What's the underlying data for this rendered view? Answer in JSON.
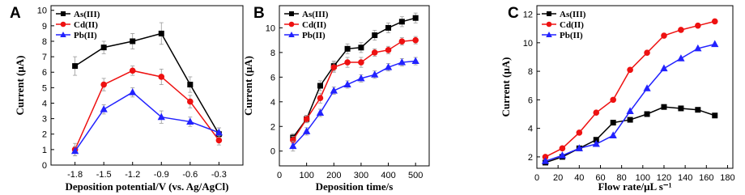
{
  "chart_data": [
    {
      "type": "line",
      "panel_label": "A",
      "x_label": "Deposition potential/V (vs. Ag/AgCl)",
      "y_label": "Current (μA)",
      "x": [
        -1.8,
        -1.5,
        -1.2,
        -0.9,
        -0.6,
        -0.3
      ],
      "xlim": [
        -2.05,
        -0.05
      ],
      "xticks": [
        -1.8,
        -1.5,
        -1.2,
        -0.9,
        -0.6,
        -0.3
      ],
      "ylim": [
        0,
        10.3
      ],
      "yticks": [
        0,
        1,
        2,
        3,
        4,
        5,
        6,
        7,
        8,
        9,
        10
      ],
      "legend": "upper left",
      "series": [
        {
          "name": "As(III)",
          "color": "#000000",
          "marker": "square",
          "values": [
            6.4,
            7.6,
            8.0,
            8.5,
            5.2,
            2.0
          ],
          "errors": [
            0.6,
            0.4,
            0.5,
            0.7,
            0.5,
            0.4
          ]
        },
        {
          "name": "Cd(II)",
          "color": "#ee1111",
          "marker": "circle",
          "values": [
            1.0,
            5.2,
            6.1,
            5.7,
            4.1,
            1.6
          ],
          "errors": [
            0.4,
            0.4,
            0.3,
            0.5,
            0.4,
            0.3
          ]
        },
        {
          "name": "Pb(II)",
          "color": "#2222ff",
          "marker": "triangle",
          "values": [
            0.9,
            3.6,
            4.7,
            3.1,
            2.8,
            2.1
          ],
          "errors": [
            0.3,
            0.3,
            0.3,
            0.4,
            0.3,
            0.3
          ]
        }
      ]
    },
    {
      "type": "line",
      "panel_label": "B",
      "x_label": "Deposition time/s",
      "y_label": "Current (μA)",
      "x": [
        50,
        100,
        150,
        200,
        250,
        300,
        350,
        400,
        450,
        500
      ],
      "xlim": [
        0,
        550
      ],
      "xticks": [
        0,
        100,
        200,
        300,
        400,
        500
      ],
      "ylim": [
        -1.2,
        11.8
      ],
      "yticks": [
        0,
        2,
        4,
        6,
        8,
        10
      ],
      "legend": "upper left",
      "series": [
        {
          "name": "As(III)",
          "color": "#000000",
          "marker": "square",
          "values": [
            1.1,
            2.6,
            5.3,
            6.9,
            8.3,
            8.4,
            9.4,
            10.0,
            10.5,
            10.8
          ],
          "errors": [
            0.3,
            0.3,
            0.4,
            0.4,
            0.4,
            0.4,
            0.4,
            0.4,
            0.4,
            0.4
          ]
        },
        {
          "name": "Cd(II)",
          "color": "#ee1111",
          "marker": "circle",
          "values": [
            0.9,
            2.6,
            4.3,
            6.8,
            7.2,
            7.2,
            8.0,
            8.2,
            8.9,
            9.0
          ],
          "errors": [
            0.3,
            0.3,
            0.4,
            0.4,
            0.4,
            0.4,
            0.3,
            0.3,
            0.3,
            0.3
          ]
        },
        {
          "name": "Pb(II)",
          "color": "#2222ff",
          "marker": "triangle",
          "values": [
            0.4,
            1.6,
            3.1,
            4.9,
            5.4,
            5.9,
            6.2,
            6.8,
            7.2,
            7.3
          ],
          "errors": [
            0.4,
            0.3,
            0.3,
            0.3,
            0.3,
            0.3,
            0.3,
            0.3,
            0.3,
            0.3
          ]
        }
      ]
    },
    {
      "type": "line",
      "panel_label": "C",
      "x_label": "Flow rate/μL s⁻¹",
      "y_label": "Current (μA)",
      "x": [
        8,
        24,
        40,
        56,
        72,
        88,
        104,
        120,
        136,
        152,
        168
      ],
      "xlim": [
        0,
        185
      ],
      "xticks": [
        0,
        20,
        40,
        60,
        80,
        100,
        120,
        140,
        160,
        180
      ],
      "ylim": [
        1.2,
        12.6
      ],
      "yticks": [
        2,
        4,
        6,
        8,
        10,
        12
      ],
      "legend": "upper left",
      "series": [
        {
          "name": "As(III)",
          "color": "#000000",
          "marker": "square",
          "values": [
            1.6,
            2.0,
            2.6,
            3.2,
            4.4,
            4.6,
            5.0,
            5.5,
            5.4,
            5.3,
            4.9
          ]
        },
        {
          "name": "Cd(II)",
          "color": "#ee1111",
          "marker": "circle",
          "values": [
            2.0,
            2.6,
            3.7,
            5.1,
            6.0,
            8.1,
            9.3,
            10.5,
            10.9,
            11.2,
            11.5
          ]
        },
        {
          "name": "Pb(II)",
          "color": "#2222ff",
          "marker": "triangle",
          "values": [
            1.7,
            2.1,
            2.6,
            2.9,
            3.5,
            5.2,
            6.8,
            8.2,
            8.9,
            9.6,
            9.9
          ]
        }
      ]
    }
  ]
}
